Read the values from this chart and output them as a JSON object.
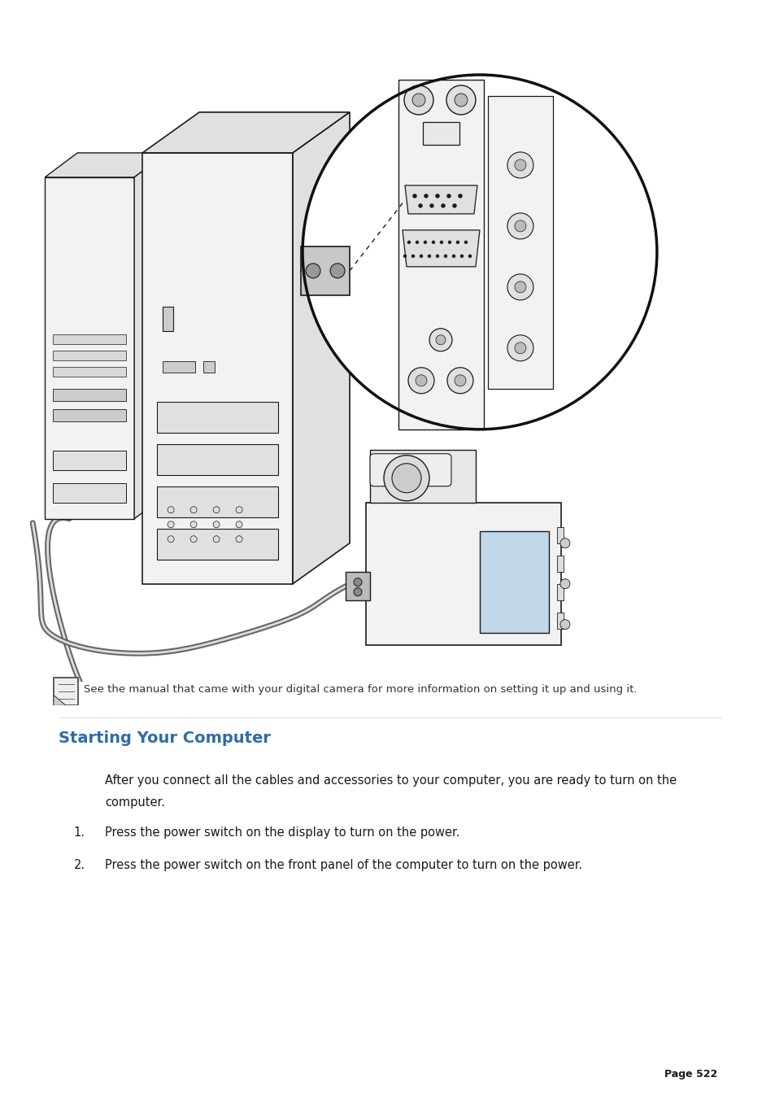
{
  "bg_color": "#ffffff",
  "page_width": 9.54,
  "page_height": 13.51,
  "note_text": "See the manual that came with your digital camera for more information on setting it up and using it.",
  "section_title": "Starting Your Computer",
  "section_title_color": "#2e6da4",
  "body_text_line1": "After you connect all the cables and accessories to your computer, you are ready to turn on the",
  "body_text_line2": "computer.",
  "step1": "Press the power switch on the display to turn on the power.",
  "step2": "Press the power switch on the front panel of the computer to turn on the power.",
  "page_label": "Page 522",
  "font_size_body": 10.5,
  "font_size_title": 14,
  "font_size_note": 9.5,
  "font_size_step": 10.5,
  "font_size_page": 9,
  "col_dark": "#1a1a1a",
  "col_mid": "#555555",
  "col_light": "#aaaaaa",
  "col_fill_light": "#f2f2f2",
  "col_fill_mid": "#e0e0e0",
  "col_fill_dark": "#cccccc"
}
